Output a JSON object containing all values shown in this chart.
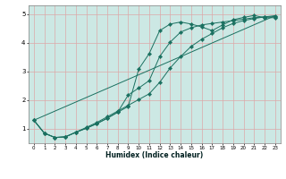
{
  "xlabel": "Humidex (Indice chaleur)",
  "bg_color": "#cce8e4",
  "grid_color": "#dda8a8",
  "line_color": "#1a7060",
  "xlim": [
    -0.5,
    23.5
  ],
  "ylim": [
    0.5,
    5.3
  ],
  "xticks": [
    0,
    1,
    2,
    3,
    4,
    5,
    6,
    7,
    8,
    9,
    10,
    11,
    12,
    13,
    14,
    15,
    16,
    17,
    18,
    19,
    20,
    21,
    22,
    23
  ],
  "yticks": [
    1,
    2,
    3,
    4,
    5
  ],
  "line1_x": [
    0,
    1,
    2,
    3,
    4,
    5,
    6,
    7,
    8,
    9,
    10,
    11,
    12,
    13,
    14,
    15,
    16,
    17,
    18,
    19,
    20,
    21,
    22,
    23
  ],
  "line1_y": [
    1.3,
    0.85,
    0.7,
    0.72,
    0.88,
    1.02,
    1.18,
    1.37,
    1.58,
    1.78,
    3.08,
    3.62,
    4.42,
    4.65,
    4.72,
    4.65,
    4.55,
    4.42,
    4.62,
    4.8,
    4.88,
    4.95,
    4.87,
    4.87
  ],
  "line2_x": [
    0,
    1,
    2,
    3,
    4,
    5,
    6,
    7,
    8,
    9,
    10,
    11,
    12,
    13,
    14,
    15,
    16,
    17,
    18,
    19,
    20,
    21,
    22,
    23
  ],
  "line2_y": [
    1.3,
    0.85,
    0.7,
    0.72,
    0.88,
    1.02,
    1.18,
    1.37,
    1.58,
    2.18,
    2.42,
    2.68,
    3.52,
    4.02,
    4.37,
    4.52,
    4.62,
    4.67,
    4.72,
    4.77,
    4.82,
    4.87,
    4.9,
    4.9
  ],
  "line3_x": [
    0,
    1,
    2,
    3,
    4,
    5,
    6,
    7,
    8,
    9,
    10,
    11,
    12,
    13,
    14,
    15,
    16,
    17,
    18,
    19,
    20,
    21,
    22,
    23
  ],
  "line3_y": [
    1.3,
    0.85,
    0.7,
    0.72,
    0.88,
    1.05,
    1.22,
    1.42,
    1.62,
    1.82,
    2.02,
    2.22,
    2.62,
    3.12,
    3.52,
    3.87,
    4.12,
    4.32,
    4.52,
    4.67,
    4.77,
    4.84,
    4.9,
    4.94
  ],
  "line4_x": [
    0,
    23
  ],
  "line4_y": [
    1.3,
    4.94
  ]
}
